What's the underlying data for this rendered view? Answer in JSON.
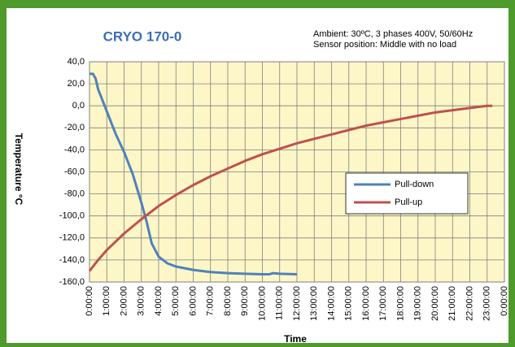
{
  "chart_data": {
    "type": "line",
    "title": "CRYO 170-0",
    "annotation": [
      "Ambient: 30ºC, 3 phases 400V, 50/60Hz",
      "Sensor position: Middle with no load"
    ],
    "x_label": "Time",
    "y_label": "Temperature  °C",
    "xlim": [
      0,
      24
    ],
    "xticks": [
      {
        "value": 0,
        "label": "0:00:00"
      },
      {
        "value": 1,
        "label": "1:00:00"
      },
      {
        "value": 2,
        "label": "2:00:00"
      },
      {
        "value": 3,
        "label": "3:00:00"
      },
      {
        "value": 4,
        "label": "4:00:00"
      },
      {
        "value": 5,
        "label": "5:00:00"
      },
      {
        "value": 6,
        "label": "6:00:00"
      },
      {
        "value": 7,
        "label": "7:00:00"
      },
      {
        "value": 8,
        "label": "8:00:00"
      },
      {
        "value": 9,
        "label": "9:00:00"
      },
      {
        "value": 10,
        "label": "10:00:00"
      },
      {
        "value": 11,
        "label": "11:00:00"
      },
      {
        "value": 12,
        "label": "12:00:00"
      },
      {
        "value": 13,
        "label": "13:00:00"
      },
      {
        "value": 14,
        "label": "14:00:00"
      },
      {
        "value": 15,
        "label": "15:00:00"
      },
      {
        "value": 16,
        "label": "16:00:00"
      },
      {
        "value": 17,
        "label": "17:00:00"
      },
      {
        "value": 18,
        "label": "18:00:00"
      },
      {
        "value": 19,
        "label": "19:00:00"
      },
      {
        "value": 20,
        "label": "20:00:00"
      },
      {
        "value": 21,
        "label": "21:00:00"
      },
      {
        "value": 22,
        "label": "22:00:00"
      },
      {
        "value": 23,
        "label": "23:00:00"
      },
      {
        "value": 24,
        "label": "0:00:00"
      }
    ],
    "ylim": [
      -160,
      40
    ],
    "yticks": [
      {
        "value": 40,
        "label": "40,0"
      },
      {
        "value": 20,
        "label": "20,0"
      },
      {
        "value": 0,
        "label": "0,0"
      },
      {
        "value": -20,
        "label": "-20,0"
      },
      {
        "value": -40,
        "label": "-40,0"
      },
      {
        "value": -60,
        "label": "-60,0"
      },
      {
        "value": -80,
        "label": "-80,0"
      },
      {
        "value": -100,
        "label": "-100,0"
      },
      {
        "value": -120,
        "label": "-120,0"
      },
      {
        "value": -140,
        "label": "-140,0"
      },
      {
        "value": -160,
        "label": "-160,0"
      }
    ],
    "grid": true,
    "legend": "right",
    "series": [
      {
        "name": "Pull-down",
        "color": "#4f81bd",
        "x": [
          0,
          0.2,
          0.35,
          0.5,
          1,
          1.5,
          2,
          2.5,
          3,
          3.3,
          3.6,
          4,
          4.5,
          5,
          6,
          7,
          8,
          9,
          10,
          10.4,
          10.6,
          11,
          12
        ],
        "values": [
          29,
          29,
          25,
          15,
          -5,
          -25,
          -42,
          -62,
          -88,
          -105,
          -125,
          -137,
          -143,
          -146,
          -149,
          -151,
          -152,
          -152.5,
          -153,
          -153,
          -152,
          -152.5,
          -153
        ]
      },
      {
        "name": "Pull-up",
        "color": "#c0504d",
        "x": [
          0,
          0.5,
          1,
          2,
          3,
          4,
          5,
          6,
          7,
          8,
          9,
          10,
          11,
          12,
          13,
          14,
          15,
          16,
          17,
          18,
          19,
          20,
          21,
          22,
          23,
          23.3
        ],
        "values": [
          -150,
          -140,
          -131,
          -116,
          -103,
          -91,
          -81,
          -72,
          -64,
          -57,
          -50,
          -44,
          -39,
          -34,
          -30,
          -26,
          -22,
          -18,
          -15,
          -12,
          -9,
          -6,
          -4,
          -2,
          0,
          0
        ]
      }
    ]
  }
}
